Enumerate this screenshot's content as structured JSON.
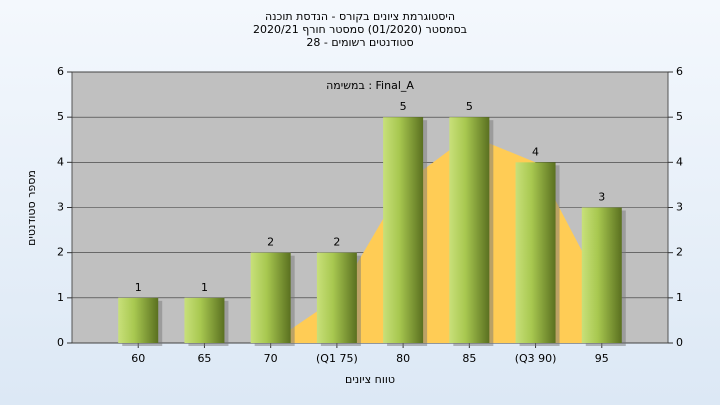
{
  "chart_data": {
    "type": "bar",
    "title": [
      "היסטוגרמת ציונים בקורס - הנדסת תוכנה",
      "בסמסטר  (01/2020)  סמסטר חורף  2020/21",
      "סטודנטים רשומים - 28"
    ],
    "annotation": "Final_A : במשימה",
    "x_label": "טווח ציונים",
    "y_label": "מספר סטודנטים",
    "categories": [
      "60",
      "65",
      "70",
      "(Q1 75)",
      "80",
      "85",
      "(Q3 90)",
      "95"
    ],
    "values": [
      1,
      1,
      2,
      2,
      5,
      5,
      4,
      3
    ],
    "curve": [
      null,
      null,
      0,
      1,
      3.5,
      4.6,
      4,
      1.2
    ],
    "color": "#9bbb3c",
    "curve_color": "#ffcc55",
    "ylim": [
      0,
      6
    ],
    "yticks": [
      0,
      1,
      2,
      3,
      4,
      5,
      6
    ],
    "grid": true
  }
}
